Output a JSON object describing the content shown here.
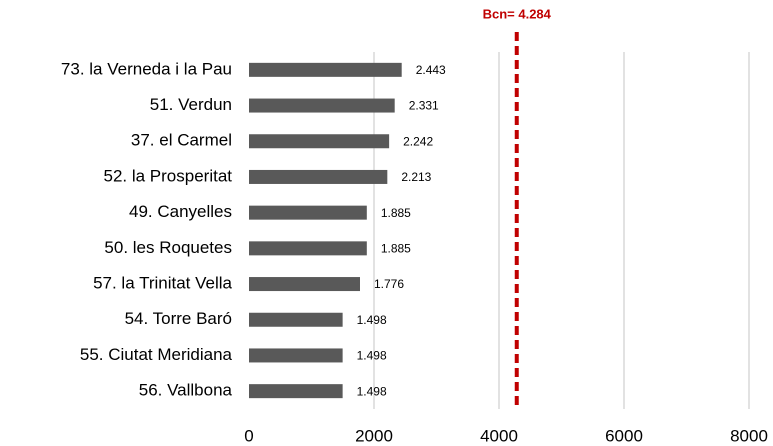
{
  "chart_data": {
    "type": "bar",
    "orientation": "horizontal",
    "categories": [
      "73. la Verneda i la Pau",
      "51. Verdun",
      "37. el Carmel",
      "52. la Prosperitat",
      "49. Canyelles",
      "50. les Roquetes",
      "57. la Trinitat Vella",
      "54. Torre Baró",
      "55. Ciutat Meridiana",
      "56. Vallbona"
    ],
    "values": [
      2443,
      2331,
      2242,
      2213,
      1885,
      1885,
      1776,
      1498,
      1498,
      1498
    ],
    "value_labels": [
      "2.443",
      "2.331",
      "2.242",
      "2.213",
      "1.885",
      "1.885",
      "1.776",
      "1.498",
      "1.498",
      "1.498"
    ],
    "color": "#595959",
    "xlim": [
      0,
      8000
    ],
    "xticks": [
      0,
      2000,
      4000,
      6000,
      8000
    ],
    "grid": true,
    "reference_line": {
      "value": 4284,
      "label": "Bcn= 4.284",
      "color": "#c00000"
    }
  }
}
